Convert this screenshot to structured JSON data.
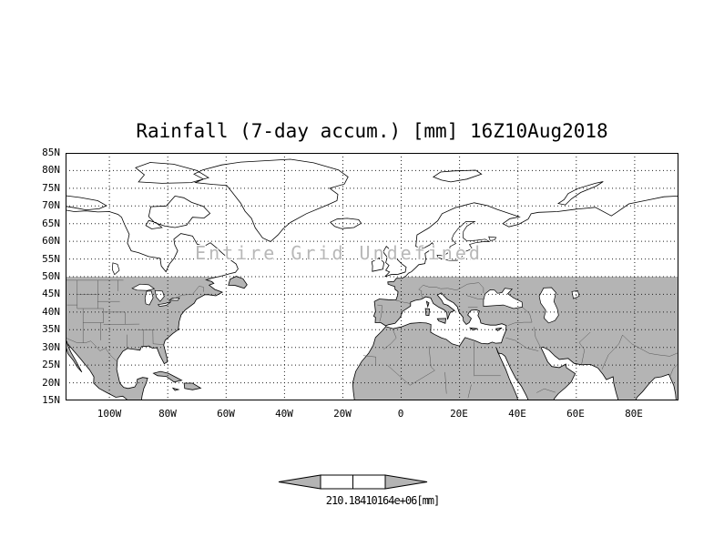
{
  "title": "Rainfall (7-day accum.) [mm] 16Z10Aug2018",
  "map": {
    "annotation": "Entire Grid Undefined",
    "y_ticks": [
      "85N",
      "80N",
      "75N",
      "70N",
      "65N",
      "60N",
      "55N",
      "50N",
      "45N",
      "40N",
      "35N",
      "30N",
      "25N",
      "20N",
      "15N"
    ],
    "x_ticks": [
      "100W",
      "80W",
      "60W",
      "40W",
      "20W",
      "0",
      "20E",
      "40E",
      "60E",
      "80E"
    ]
  },
  "colorbar": {
    "label": "210.18410164e+06[mm]"
  },
  "colors": {
    "land_shade": "#b4b4b4",
    "coastline": "#000000",
    "annotation_text": "#b8b8b8",
    "border_lines": "#555555"
  },
  "chart_data": {
    "type": "heatmap",
    "title": "Rainfall (7-day accum.) [mm] 16Z10Aug2018",
    "variable": "Rainfall (7-day accum.)",
    "units": "mm",
    "valid_time": "16Z10Aug2018",
    "x_ticks": [
      "100W",
      "80W",
      "60W",
      "40W",
      "20W",
      "0",
      "20E",
      "40E",
      "60E",
      "80E"
    ],
    "y_ticks": [
      "85N",
      "80N",
      "75N",
      "70N",
      "65N",
      "60N",
      "55N",
      "50N",
      "45N",
      "40N",
      "35N",
      "30N",
      "25N",
      "20N",
      "15N"
    ],
    "values_defined": false,
    "annotation": "Entire Grid Undefined",
    "note": "No rainfall values plotted; basemap with land south of 50N shaded gray",
    "colorbar_label": "210.18410164e+06[mm]",
    "grid": true,
    "legend_position": "bottom-center"
  }
}
